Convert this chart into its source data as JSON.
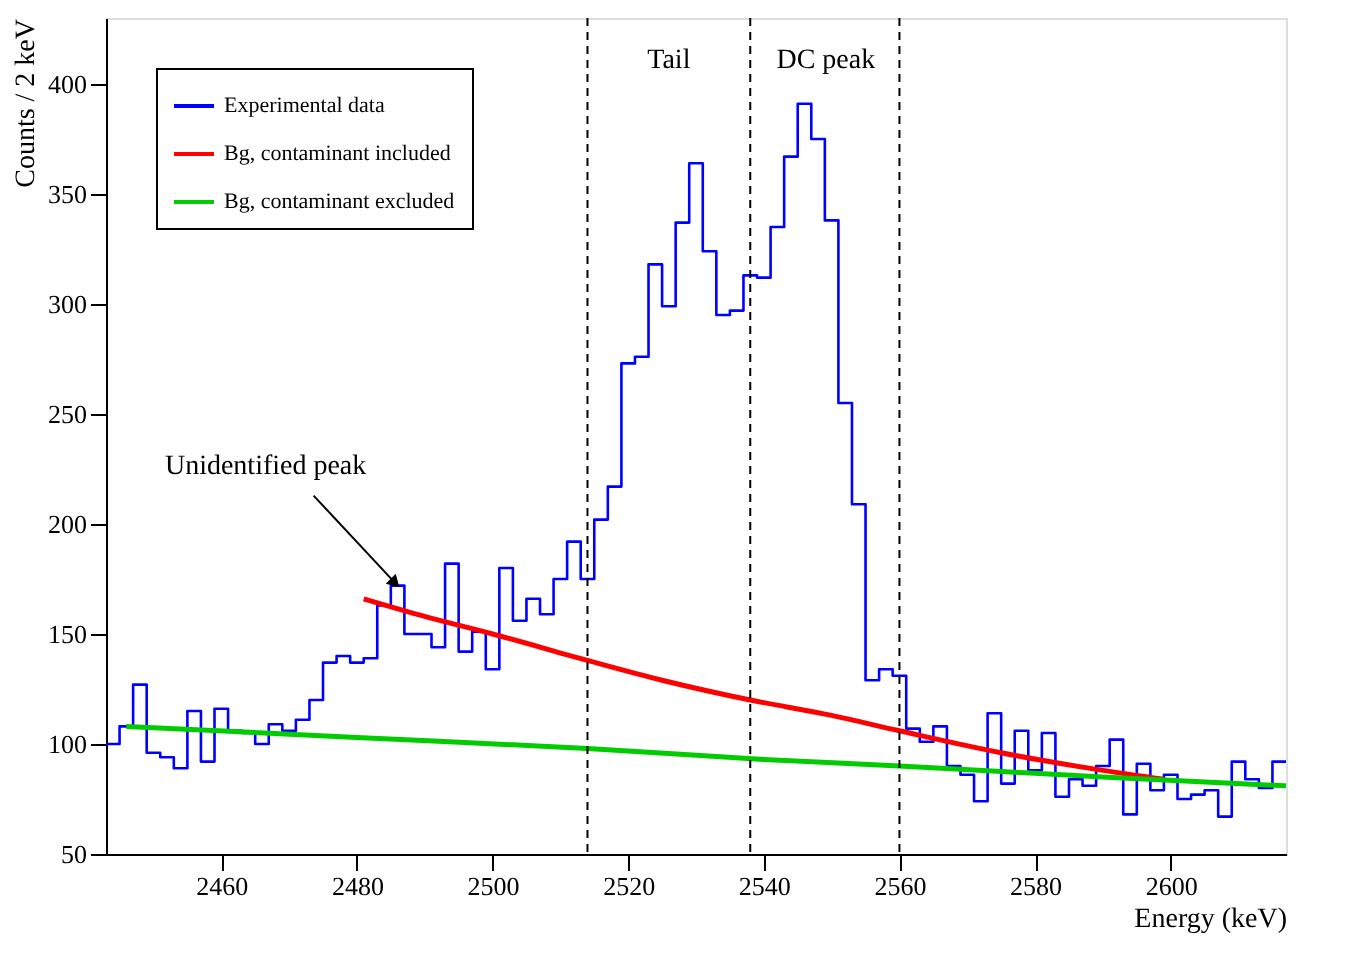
{
  "chart_data": {
    "type": "histogram",
    "xlabel": "Energy (keV)",
    "ylabel": "Counts / 2 keV",
    "bins": [
      2443,
      2445,
      2447,
      2449,
      2451,
      2453,
      2455,
      2457,
      2459,
      2461,
      2463,
      2465,
      2467,
      2469,
      2471,
      2473,
      2475,
      2477,
      2479,
      2481,
      2483,
      2485,
      2487,
      2489,
      2491,
      2493,
      2495,
      2497,
      2499,
      2501,
      2503,
      2505,
      2507,
      2509,
      2511,
      2513,
      2515,
      2517,
      2519,
      2521,
      2523,
      2525,
      2527,
      2529,
      2531,
      2533,
      2535,
      2537,
      2539,
      2541,
      2543,
      2545,
      2547,
      2549,
      2551,
      2553,
      2555,
      2557,
      2559,
      2561,
      2563,
      2565,
      2567,
      2569,
      2571,
      2573,
      2575,
      2577,
      2579,
      2581,
      2583,
      2585,
      2587,
      2589,
      2591,
      2593,
      2595,
      2597,
      2599,
      2601,
      2603,
      2605,
      2607,
      2609,
      2611,
      2613,
      2615,
      2617
    ],
    "series": [
      {
        "name": "Experimental data",
        "color": "#0000ff",
        "values": [
          100,
          108,
          127,
          96,
          94,
          89,
          115,
          92,
          116,
          106,
          105,
          100,
          109,
          106,
          111,
          120,
          137,
          140,
          137,
          139,
          163,
          172,
          150,
          150,
          144,
          182,
          142,
          151,
          134,
          180,
          156,
          166,
          159,
          175,
          192,
          175,
          202,
          217,
          273,
          276,
          318,
          299,
          337,
          364,
          324,
          295,
          297,
          313,
          312,
          335,
          367,
          391,
          375,
          338,
          255,
          209,
          129,
          134,
          131,
          107,
          101,
          108,
          90,
          86,
          74,
          114,
          82,
          106,
          88,
          105,
          76,
          84,
          81,
          90,
          102,
          68,
          91,
          79,
          86,
          75,
          77,
          79,
          67,
          92,
          84,
          80,
          92
        ]
      },
      {
        "name": "Bg, contaminant included",
        "type": "line",
        "color": "#ff0000",
        "x": [
          2481,
          2490,
          2500,
          2514,
          2525,
          2538,
          2550,
          2560,
          2575,
          2590,
          2599
        ],
        "values": [
          166,
          158,
          150,
          138,
          129,
          120,
          113,
          106,
          96,
          88,
          84
        ]
      },
      {
        "name": "Bg, contaminant excluded",
        "type": "line",
        "color": "#00cc00",
        "x": [
          2446,
          2480,
          2514,
          2540,
          2560,
          2590,
          2617
        ],
        "values": [
          108,
          103,
          98,
          93,
          90,
          85,
          81
        ]
      }
    ],
    "xlim": [
      2443,
      2617
    ],
    "ylim": [
      50,
      430
    ],
    "xticks": [
      2460,
      2480,
      2500,
      2520,
      2540,
      2560,
      2580,
      2600
    ],
    "yticks": [
      50,
      100,
      150,
      200,
      250,
      300,
      350,
      400
    ],
    "ref_lines": [
      {
        "axis": "x",
        "value": 2514,
        "color": "#000000",
        "line_style": "dashed"
      },
      {
        "axis": "x",
        "value": 2538,
        "color": "#000000",
        "line_style": "dashed"
      },
      {
        "axis": "x",
        "value": 2560,
        "color": "#000000",
        "line_style": "dashed"
      }
    ],
    "annotations": [
      "Tail",
      "DC peak",
      {
        "text": "Unidentified peak",
        "x": 2486,
        "y": 172
      }
    ],
    "legend": "top left",
    "grid": false
  }
}
